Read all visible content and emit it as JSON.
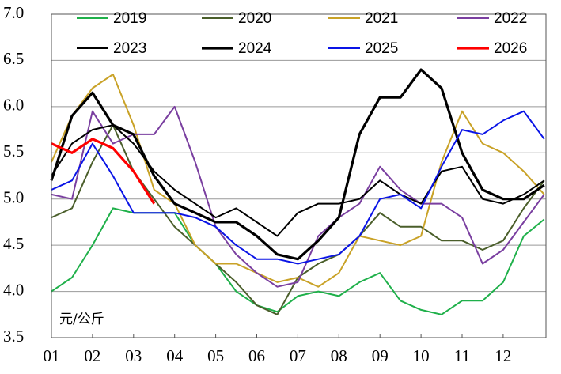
{
  "chart_data": {
    "type": "line",
    "annotation": "元/公斤",
    "x": [
      1,
      1.5,
      2,
      2.5,
      3,
      3.5,
      4,
      4.5,
      5,
      5.5,
      6,
      6.5,
      7,
      7.5,
      8,
      8.5,
      9,
      9.5,
      10,
      10.5,
      11,
      11.5,
      12,
      12.5,
      13
    ],
    "xlim": [
      1,
      13
    ],
    "xticks": [
      {
        "value": 1,
        "label": "01"
      },
      {
        "value": 2,
        "label": "02"
      },
      {
        "value": 3,
        "label": "03"
      },
      {
        "value": 4,
        "label": "04"
      },
      {
        "value": 5,
        "label": "05"
      },
      {
        "value": 6,
        "label": "06"
      },
      {
        "value": 7,
        "label": "07"
      },
      {
        "value": 8,
        "label": "08"
      },
      {
        "value": 9,
        "label": "09"
      },
      {
        "value": 10,
        "label": "10"
      },
      {
        "value": 11,
        "label": "11"
      },
      {
        "value": 12,
        "label": "12"
      }
    ],
    "ylim": [
      3.5,
      7
    ],
    "yticks": [
      {
        "value": 3.5,
        "label": "3.5"
      },
      {
        "value": 4,
        "label": "4.0"
      },
      4.5,
      {
        "value": 5,
        "label": "5.0"
      },
      5.5,
      {
        "value": 6,
        "label": "6.0"
      },
      6.5,
      {
        "value": 7,
        "label": "7.0"
      }
    ],
    "grid": true,
    "legend": "top",
    "series": [
      {
        "name": "2019",
        "color": "#1fb04a",
        "width": 2,
        "values": [
          4.0,
          4.15,
          4.5,
          4.9,
          4.85,
          4.85,
          4.85,
          4.5,
          4.3,
          4.0,
          3.85,
          3.78,
          3.95,
          4.0,
          3.95,
          4.1,
          4.2,
          3.9,
          3.8,
          3.75,
          3.9,
          3.9,
          4.1,
          4.6,
          4.78
        ]
      },
      {
        "name": "2020",
        "color": "#4a5e2a",
        "width": 2,
        "values": [
          4.8,
          4.9,
          5.4,
          5.8,
          5.3,
          5.0,
          4.7,
          4.5,
          4.3,
          4.1,
          3.85,
          3.75,
          4.15,
          4.3,
          4.4,
          4.6,
          4.85,
          4.7,
          4.7,
          4.55,
          4.55,
          4.45,
          4.55,
          4.9,
          5.2
        ]
      },
      {
        "name": "2021",
        "color": "#c9a227",
        "width": 2,
        "values": [
          5.4,
          5.9,
          6.2,
          6.35,
          5.8,
          5.1,
          4.95,
          4.5,
          4.3,
          4.3,
          4.2,
          4.1,
          4.15,
          4.05,
          4.2,
          4.6,
          4.55,
          4.5,
          4.6,
          5.4,
          5.95,
          5.6,
          5.5,
          5.3,
          5.05
        ]
      },
      {
        "name": "2022",
        "color": "#7a3fa0",
        "width": 2,
        "values": [
          5.05,
          5.0,
          5.95,
          5.6,
          5.7,
          5.7,
          6.0,
          5.4,
          4.7,
          4.4,
          4.2,
          4.05,
          4.1,
          4.6,
          4.8,
          4.95,
          5.35,
          5.1,
          4.95,
          4.95,
          4.8,
          4.3,
          4.45,
          4.75,
          5.05
        ]
      },
      {
        "name": "2023",
        "color": "#000000",
        "width": 2,
        "values": [
          5.25,
          5.6,
          5.75,
          5.8,
          5.6,
          5.3,
          5.1,
          4.95,
          4.8,
          4.9,
          4.75,
          4.6,
          4.85,
          4.95,
          4.95,
          5.0,
          5.2,
          5.05,
          4.95,
          5.3,
          5.35,
          5.0,
          4.95,
          5.05,
          5.2
        ]
      },
      {
        "name": "2024",
        "color": "#000000",
        "width": 3.2,
        "values": [
          5.2,
          5.9,
          6.15,
          5.8,
          5.7,
          5.25,
          4.95,
          4.85,
          4.75,
          4.75,
          4.6,
          4.4,
          4.35,
          4.55,
          4.8,
          5.7,
          6.1,
          6.1,
          6.4,
          6.2,
          5.5,
          5.1,
          5.0,
          5.0,
          5.15
        ]
      },
      {
        "name": "2025",
        "color": "#0a14e6",
        "width": 2,
        "values": [
          5.1,
          5.2,
          5.6,
          5.25,
          4.85,
          4.85,
          4.85,
          4.8,
          4.7,
          4.5,
          4.35,
          4.35,
          4.3,
          4.35,
          4.4,
          4.6,
          5.0,
          5.05,
          4.9,
          5.35,
          5.75,
          5.7,
          5.85,
          5.95,
          5.65
        ]
      },
      {
        "name": "2026",
        "color": "#ff0000",
        "width": 3.2,
        "values": [
          5.6,
          5.5,
          5.65,
          5.55,
          5.3,
          4.95,
          null,
          null,
          null,
          null,
          null,
          null,
          null,
          null,
          null,
          null,
          null,
          null,
          null,
          null,
          null,
          null,
          null,
          null,
          null
        ]
      }
    ]
  }
}
